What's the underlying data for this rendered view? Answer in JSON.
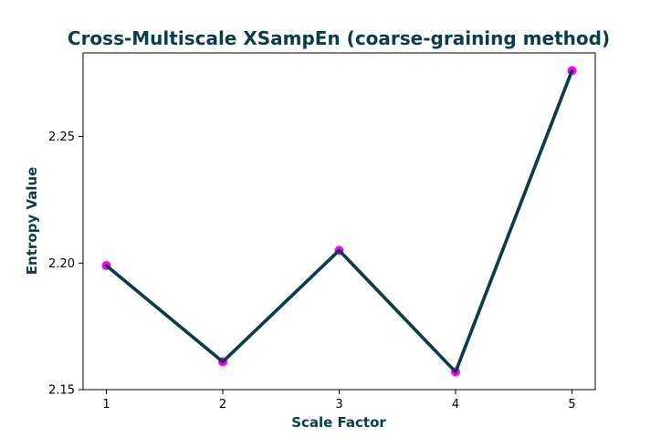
{
  "chart_data": {
    "type": "line",
    "title": "Cross-Multiscale XSampEn (coarse-graining method)",
    "xlabel": "Scale Factor",
    "ylabel": "Entropy Value",
    "x": [
      1,
      2,
      3,
      4,
      5
    ],
    "x_tick_labels": [
      "1",
      "2",
      "3",
      "4",
      "5"
    ],
    "y_ticks": [
      2.15,
      2.2,
      2.25
    ],
    "y_tick_labels": [
      "2.15",
      "2.20",
      "2.25"
    ],
    "xlim": [
      0.8,
      5.2
    ],
    "ylim": [
      2.15,
      2.283
    ],
    "grid": false,
    "series": [
      {
        "name": "Cross-Multiscale XSampEn",
        "values": [
          2.199,
          2.161,
          2.205,
          2.157,
          2.276
        ]
      }
    ],
    "colors": {
      "line": "#0b3c49",
      "marker": "#ff00ff",
      "text": "#0b3c49",
      "axes": "#000000"
    }
  }
}
